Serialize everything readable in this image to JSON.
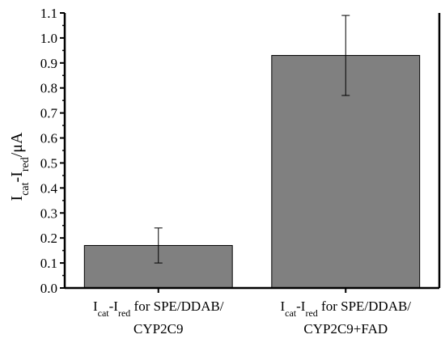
{
  "chart_data": {
    "type": "bar",
    "categories": [
      {
        "line1": {
          "prefix": "I",
          "sub1": "cat",
          "mid": "-I",
          "sub2": "red",
          "suffix": " for SPE/DDAB/"
        },
        "line2": "CYP2C9"
      },
      {
        "line1": {
          "prefix": "I",
          "sub1": "cat",
          "mid": "-I",
          "sub2": "red",
          "suffix": " for SPE/DDAB/"
        },
        "line2": "CYP2C9+FAD"
      }
    ],
    "values": [
      0.17,
      0.93
    ],
    "errors": [
      0.07,
      0.16
    ],
    "ylabel": {
      "main": "I",
      "sub1": "cat",
      "mid": "-I",
      "sub2": "red",
      "suffix": "/μA"
    },
    "xlabel": "",
    "title": "",
    "ylim": [
      0,
      1.1
    ],
    "yticks": [
      "0.0",
      "0.1",
      "0.2",
      "0.3",
      "0.4",
      "0.5",
      "0.6",
      "0.7",
      "0.8",
      "0.9",
      "1.0",
      "1.1"
    ],
    "grid": false,
    "bar_color": "#808080",
    "bar_edge_color": "#000000"
  }
}
